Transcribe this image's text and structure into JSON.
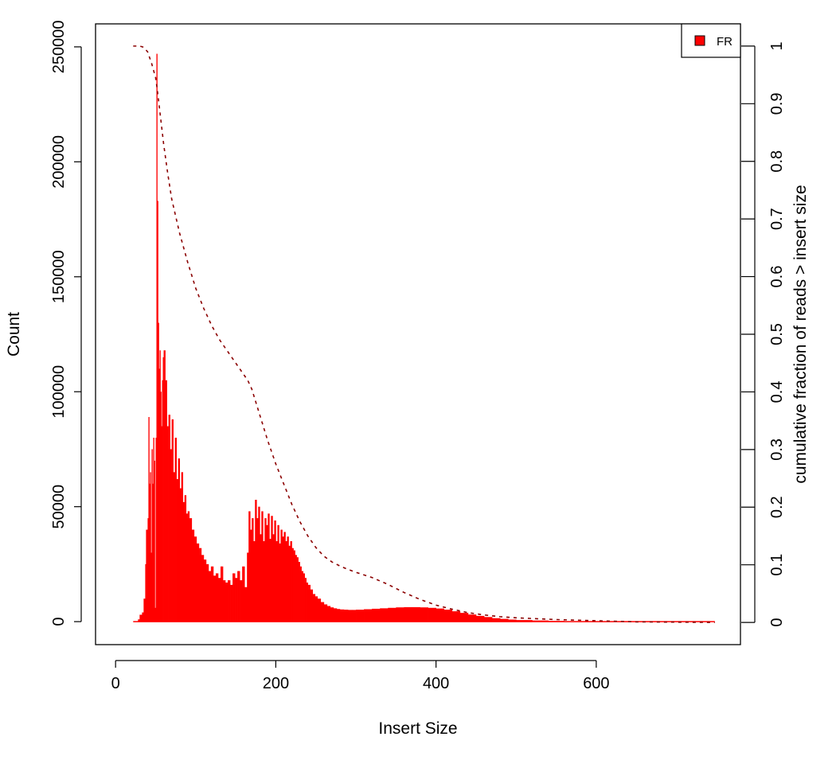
{
  "chart_data": {
    "type": "area",
    "xlabel": "Insert Size",
    "ylabel": "Count",
    "y2label": "cumulative fraction of reads > insert size",
    "xlim": [
      -25,
      780
    ],
    "ylim": [
      -10000,
      260000
    ],
    "y2lim": [
      -0.0385,
      1.0385
    ],
    "xticks": [
      0,
      200,
      400,
      600
    ],
    "yticks": [
      0,
      50000,
      100000,
      150000,
      200000,
      250000
    ],
    "y2ticks": [
      0,
      0.1,
      0.2,
      0.3,
      0.4,
      0.5,
      0.6,
      0.7,
      0.8,
      0.9,
      1
    ],
    "legend": {
      "position": "top-right",
      "entries": [
        {
          "label": "FR",
          "color": "#ff0000"
        }
      ]
    },
    "series": [
      {
        "name": "FR",
        "kind": "histogram",
        "color": "#ff0000",
        "x": [
          22,
          28,
          30,
          33,
          35,
          37,
          38,
          40,
          41,
          42,
          43,
          44,
          45,
          46,
          47,
          48,
          49,
          50,
          51,
          52,
          53,
          54,
          55,
          56,
          57,
          58,
          59,
          60,
          62,
          64,
          66,
          68,
          70,
          72,
          74,
          76,
          78,
          80,
          82,
          84,
          86,
          88,
          90,
          92,
          95,
          98,
          101,
          104,
          107,
          110,
          113,
          116,
          119,
          122,
          125,
          128,
          131,
          134,
          137,
          140,
          143,
          146,
          149,
          152,
          155,
          158,
          161,
          164,
          166,
          168,
          170,
          172,
          174,
          176,
          178,
          180,
          182,
          184,
          186,
          188,
          190,
          192,
          194,
          196,
          198,
          200,
          202,
          204,
          206,
          208,
          210,
          212,
          214,
          216,
          218,
          220,
          222,
          224,
          226,
          228,
          230,
          232,
          234,
          236,
          238,
          240,
          243,
          246,
          249,
          252,
          256,
          260,
          264,
          268,
          272,
          276,
          280,
          285,
          290,
          295,
          300,
          310,
          320,
          330,
          340,
          350,
          360,
          370,
          380,
          390,
          400,
          410,
          420,
          430,
          440,
          450,
          460,
          470,
          480,
          490,
          500,
          520,
          540,
          560,
          580,
          600,
          650,
          700,
          748
        ],
        "y": [
          0,
          1000,
          3000,
          4000,
          10000,
          25000,
          40000,
          45000,
          89000,
          60000,
          65000,
          30000,
          75000,
          60000,
          80000,
          70000,
          6000,
          80000,
          247000,
          183000,
          130000,
          110000,
          118000,
          100000,
          85000,
          105000,
          115000,
          118000,
          105000,
          85000,
          90000,
          75000,
          88000,
          65000,
          80000,
          62000,
          71000,
          58000,
          65000,
          52000,
          55000,
          47000,
          48000,
          45000,
          40000,
          37000,
          34000,
          32000,
          29000,
          27000,
          25000,
          22000,
          24000,
          20000,
          21000,
          19000,
          24000,
          18000,
          17000,
          18000,
          16000,
          21000,
          19000,
          22000,
          18000,
          24000,
          15000,
          30000,
          48000,
          40000,
          45000,
          35000,
          53000,
          45000,
          50000,
          38000,
          48000,
          35000,
          45000,
          42000,
          47000,
          36000,
          46000,
          38000,
          44000,
          35000,
          42000,
          34000,
          40000,
          37000,
          39000,
          35000,
          37000,
          33000,
          35000,
          32000,
          31000,
          29000,
          28000,
          26000,
          24000,
          22000,
          21000,
          19000,
          17000,
          16000,
          14000,
          12000,
          11000,
          10000,
          8500,
          7500,
          6800,
          6200,
          5800,
          5500,
          5300,
          5200,
          5100,
          5100,
          5200,
          5400,
          5600,
          5800,
          6000,
          6200,
          6300,
          6300,
          6200,
          6000,
          5700,
          5200,
          4500,
          3800,
          3100,
          2500,
          2000,
          1500,
          1200,
          900,
          700,
          500,
          300,
          200,
          150,
          100,
          50,
          20,
          0
        ]
      },
      {
        "name": "cumulative fraction",
        "kind": "line",
        "linestyle": "dashed",
        "axis": "right",
        "color": "#8b0000",
        "x": [
          22,
          30,
          35,
          40,
          45,
          50,
          52,
          55,
          60,
          65,
          70,
          80,
          90,
          100,
          110,
          120,
          130,
          140,
          150,
          160,
          165,
          170,
          180,
          190,
          200,
          210,
          220,
          230,
          240,
          250,
          260,
          270,
          280,
          290,
          300,
          320,
          340,
          360,
          380,
          400,
          420,
          440,
          460,
          480,
          500,
          550,
          600,
          650,
          700,
          748
        ],
        "y": [
          1.0,
          1.0,
          0.998,
          0.99,
          0.97,
          0.945,
          0.925,
          0.89,
          0.83,
          0.78,
          0.735,
          0.675,
          0.625,
          0.58,
          0.545,
          0.515,
          0.49,
          0.47,
          0.45,
          0.43,
          0.42,
          0.405,
          0.36,
          0.315,
          0.275,
          0.24,
          0.205,
          0.175,
          0.15,
          0.13,
          0.115,
          0.105,
          0.098,
          0.092,
          0.087,
          0.078,
          0.066,
          0.052,
          0.04,
          0.03,
          0.023,
          0.017,
          0.013,
          0.01,
          0.008,
          0.005,
          0.003,
          0.001,
          0.0005,
          0
        ]
      }
    ]
  }
}
